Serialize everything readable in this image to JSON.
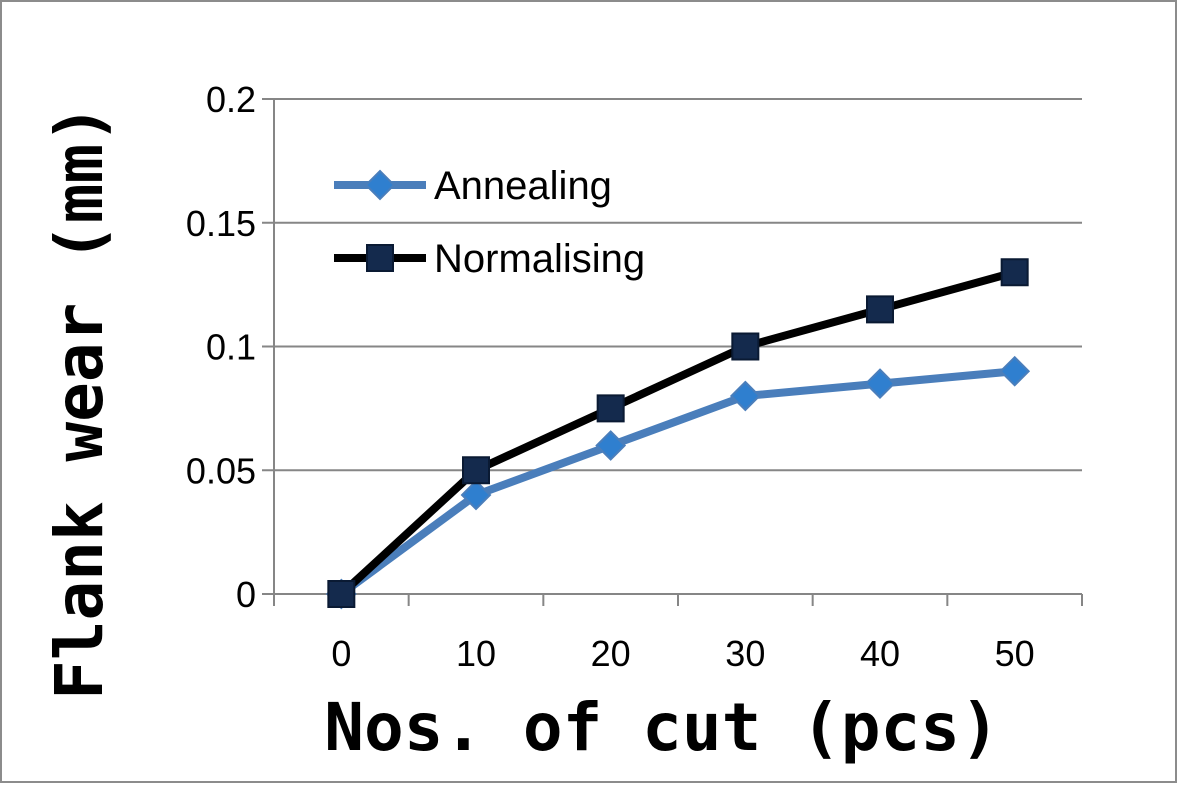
{
  "chart_data": {
    "type": "line",
    "title": "",
    "xlabel": "Nos. of cut (pcs)",
    "ylabel": "Flank wear (mm)",
    "categories": [
      "0",
      "10",
      "20",
      "30",
      "40",
      "50"
    ],
    "ylim": [
      0,
      0.2
    ],
    "yticks": [
      "0",
      "0.05",
      "0.1",
      "0.15",
      "0.2"
    ],
    "grid": true,
    "legend_position": "top-left",
    "series": [
      {
        "name": "Annealing",
        "values": [
          0,
          0.04,
          0.06,
          0.08,
          0.085,
          0.09
        ],
        "line_color": "#4a7ebb",
        "marker": "diamond",
        "marker_color": "#2f7fcf"
      },
      {
        "name": "Normalising",
        "values": [
          0,
          0.05,
          0.075,
          0.1,
          0.115,
          0.13
        ],
        "line_color": "#000000",
        "marker": "square",
        "marker_color": "#142a4d"
      }
    ]
  }
}
